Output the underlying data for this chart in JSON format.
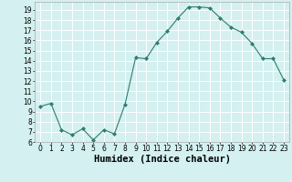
{
  "x": [
    0,
    1,
    2,
    3,
    4,
    5,
    6,
    7,
    8,
    9,
    10,
    11,
    12,
    13,
    14,
    15,
    16,
    17,
    18,
    19,
    20,
    21,
    22,
    23
  ],
  "y": [
    9.5,
    9.8,
    7.2,
    6.7,
    7.3,
    6.2,
    7.2,
    6.8,
    9.7,
    14.3,
    14.2,
    15.8,
    16.9,
    18.2,
    19.3,
    19.3,
    19.2,
    18.2,
    17.3,
    16.8,
    15.7,
    14.2,
    14.2,
    12.1
  ],
  "line_color": "#2e7d6e",
  "marker": "D",
  "marker_size": 2.0,
  "bg_color": "#d4f0f0",
  "grid_color": "#ffffff",
  "xlabel": "Humidex (Indice chaleur)",
  "ylim": [
    6,
    19.8
  ],
  "xlim": [
    -0.5,
    23.5
  ],
  "yticks": [
    6,
    7,
    8,
    9,
    10,
    11,
    12,
    13,
    14,
    15,
    16,
    17,
    18,
    19
  ],
  "xticks": [
    0,
    1,
    2,
    3,
    4,
    5,
    6,
    7,
    8,
    9,
    10,
    11,
    12,
    13,
    14,
    15,
    16,
    17,
    18,
    19,
    20,
    21,
    22,
    23
  ],
  "tick_fontsize": 5.5,
  "label_fontsize": 7.5
}
